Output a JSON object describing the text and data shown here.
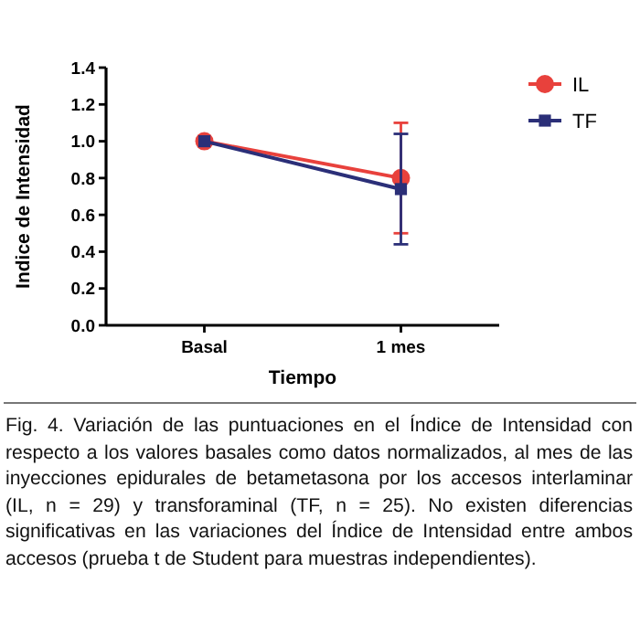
{
  "chart_data": {
    "type": "line",
    "xlabel": "Tiempo",
    "ylabel": "Indice de Intensidad",
    "categories": [
      "Basal",
      "1 mes"
    ],
    "series": [
      {
        "name": "IL",
        "color": "#e8413c",
        "marker": "circle",
        "values": [
          1.0,
          0.8
        ],
        "errors": [
          null,
          0.3
        ]
      },
      {
        "name": "TF",
        "color": "#2b2f78",
        "marker": "square",
        "values": [
          1.0,
          0.74
        ],
        "errors": [
          null,
          0.3
        ]
      }
    ],
    "ylim": [
      0,
      1.4
    ],
    "yticks": [
      {
        "value": 0,
        "label": "0.0"
      },
      {
        "value": 0.2,
        "label": "0.2"
      },
      {
        "value": 0.4,
        "label": "0.4"
      },
      {
        "value": 0.6,
        "label": "0.6"
      },
      {
        "value": 0.8,
        "label": "0.8"
      },
      {
        "value": 1,
        "label": "1.0"
      },
      {
        "value": 1.2,
        "label": "1.2"
      },
      {
        "value": 1.4,
        "label": "1.4"
      }
    ],
    "grid": false,
    "legend": "top right",
    "annotations": [
      "Fig. 4. Variación de las puntuaciones en el Índice de Intensidad con respecto a los valores basales como datos normalizados, al mes de las inyecciones epidurales de betametasona por los accesos interlaminar (IL, n = 29) y transforaminal (TF, n = 25). No existen diferencias significativas en las variaciones del Índice de Intensidad entre ambos accesos (prueba t de Student para muestras independientes)."
    ]
  }
}
